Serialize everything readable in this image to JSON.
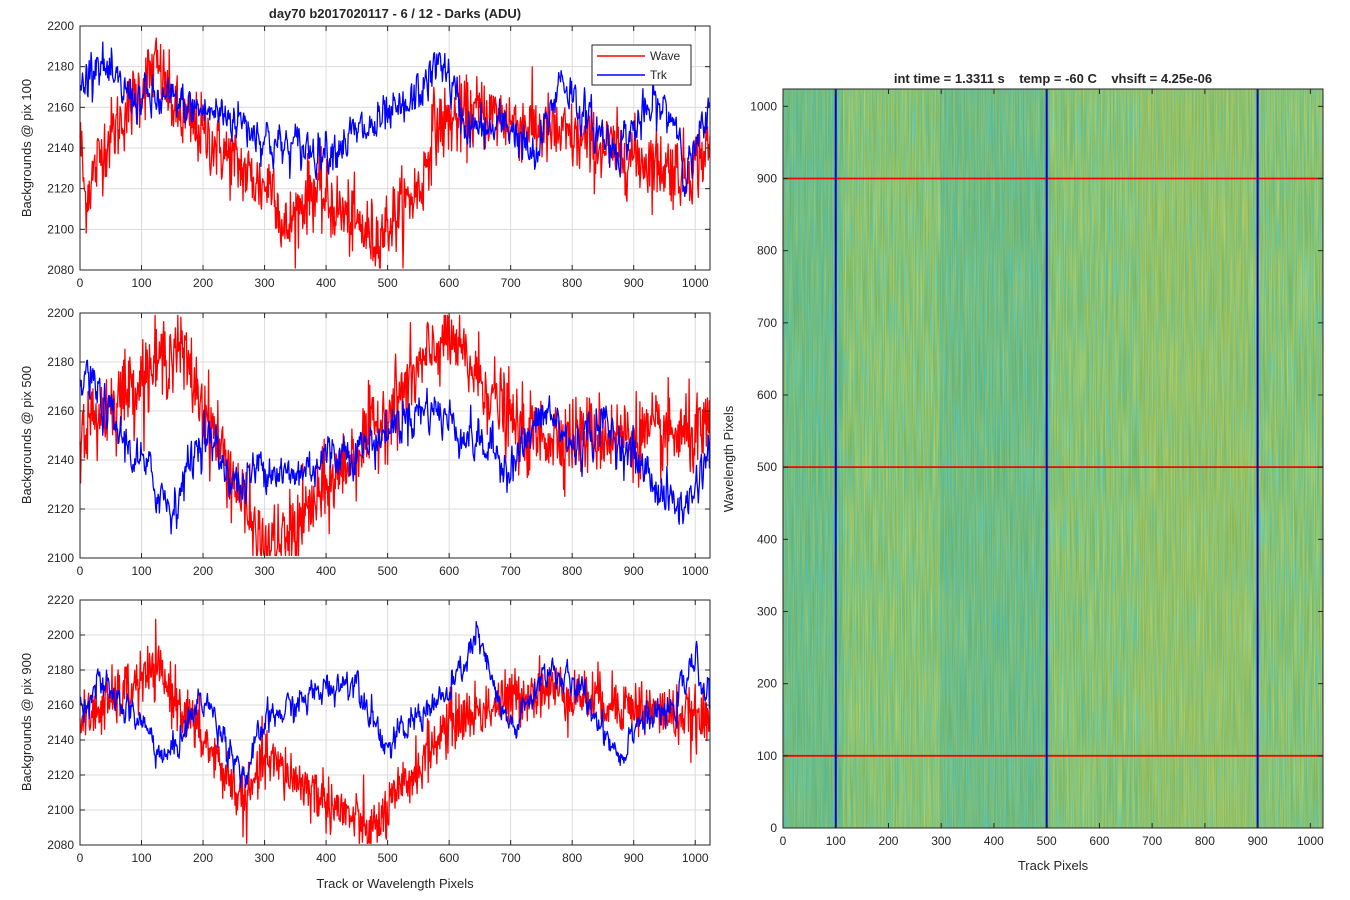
{
  "figure": {
    "suptitle": "day70 b2017020117 - 6 / 12 - Darks (ADU)",
    "image_title": "int time = 1.3311 s    temp = -60 C    vhsift = 4.25e-06"
  },
  "chart_data": [
    {
      "type": "line",
      "xlabel": "",
      "ylabel": "Backgrounds @ pix 100",
      "xlim": [
        0,
        1024
      ],
      "ylim": [
        2080,
        2200
      ],
      "xticks": [
        0,
        100,
        200,
        300,
        400,
        500,
        600,
        700,
        800,
        900,
        1000
      ],
      "yticks": [
        2080,
        2100,
        2120,
        2140,
        2160,
        2180,
        2200
      ],
      "grid": true,
      "legend": "top-right",
      "series": [
        {
          "name": "Wave",
          "color": "#ff0000",
          "mean": 2150,
          "std": 12,
          "x": [
            0,
            8,
            37,
            124,
            160,
            189,
            295,
            316,
            330,
            376,
            480,
            556,
            574,
            650,
            985,
            1024
          ],
          "values": [
            2148,
            2115,
            2140,
            2181,
            2155,
            2150,
            2121,
            2124,
            2097,
            2120,
            2095,
            2122,
            2150,
            2158,
            2128,
            2140
          ]
        },
        {
          "name": "Trk",
          "color": "#0000ff",
          "mean": 2155,
          "std": 6,
          "x": [
            0,
            27,
            55,
            100,
            150,
            200,
            245,
            280,
            325,
            400,
            478,
            530,
            590,
            605,
            630,
            665,
            700,
            740,
            782,
            825,
            870,
            935,
            970,
            985,
            1024
          ],
          "values": [
            2168,
            2186,
            2170,
            2164,
            2162,
            2158,
            2156,
            2150,
            2140,
            2140,
            2150,
            2158,
            2184,
            2168,
            2150,
            2148,
            2152,
            2132,
            2176,
            2153,
            2140,
            2160,
            2154,
            2128,
            2155
          ]
        }
      ]
    },
    {
      "type": "line",
      "xlabel": "",
      "ylabel": "Backgrounds @ pix 500",
      "xlim": [
        0,
        1024
      ],
      "ylim": [
        2100,
        2200
      ],
      "xticks": [
        0,
        100,
        200,
        300,
        400,
        500,
        600,
        700,
        800,
        900,
        1000
      ],
      "yticks": [
        2100,
        2120,
        2140,
        2160,
        2180,
        2200
      ],
      "grid": true,
      "series": [
        {
          "name": "Wave",
          "color": "#ff0000",
          "mean": 2148,
          "std": 11,
          "x": [
            0,
            160,
            295,
            330,
            400,
            500,
            595,
            720,
            1024
          ],
          "values": [
            2152,
            2187,
            2104,
            2106,
            2128,
            2160,
            2191,
            2150,
            2150
          ]
        },
        {
          "name": "Trk",
          "color": "#0000ff",
          "mean": 2145,
          "std": 5,
          "x": [
            0,
            10,
            60,
            150,
            200,
            260,
            300,
            340,
            400,
            470,
            530,
            570,
            620,
            700,
            760,
            800,
            850,
            905,
            955,
            985,
            1024
          ],
          "values": [
            2168,
            2175,
            2152,
            2120,
            2152,
            2128,
            2140,
            2132,
            2142,
            2146,
            2158,
            2162,
            2152,
            2138,
            2160,
            2145,
            2155,
            2140,
            2124,
            2120,
            2145
          ]
        }
      ]
    },
    {
      "type": "line",
      "xlabel": "Track or Wavelength Pixels",
      "ylabel": "Backgrounds @ pix 900",
      "xlim": [
        0,
        1024
      ],
      "ylim": [
        2080,
        2220
      ],
      "xticks": [
        0,
        100,
        200,
        300,
        400,
        500,
        600,
        700,
        800,
        900,
        1000
      ],
      "yticks": [
        2080,
        2100,
        2120,
        2140,
        2160,
        2180,
        2200,
        2220
      ],
      "grid": true,
      "series": [
        {
          "name": "Wave",
          "color": "#ff0000",
          "mean": 2150,
          "std": 11,
          "x": [
            0,
            125,
            270,
            300,
            475,
            600,
            750,
            1024
          ],
          "values": [
            2150,
            2180,
            2103,
            2130,
            2087,
            2150,
            2170,
            2150
          ]
        },
        {
          "name": "Trk",
          "color": "#0000ff",
          "mean": 2155,
          "std": 5,
          "x": [
            0,
            30,
            100,
            140,
            200,
            270,
            300,
            350,
            400,
            450,
            500,
            560,
            600,
            645,
            690,
            710,
            760,
            820,
            880,
            900,
            960,
            1000,
            1024
          ],
          "values": [
            2160,
            2172,
            2150,
            2128,
            2165,
            2118,
            2150,
            2160,
            2170,
            2175,
            2135,
            2158,
            2165,
            2200,
            2150,
            2148,
            2182,
            2165,
            2130,
            2150,
            2155,
            2185,
            2162
          ]
        }
      ]
    },
    {
      "type": "heatmap",
      "xlabel": "Track Pixels",
      "ylabel": "Wavelength Pixels",
      "xlim": [
        0,
        1024
      ],
      "ylim": [
        0,
        1024
      ],
      "xticks": [
        0,
        100,
        200,
        300,
        400,
        500,
        600,
        700,
        800,
        900,
        1000
      ],
      "yticks": [
        0,
        100,
        200,
        300,
        400,
        500,
        600,
        700,
        800,
        900,
        1000
      ],
      "colormap": "parula",
      "marker_lines": {
        "vertical": {
          "x": [
            100,
            500,
            900
          ],
          "color": "#0000cc"
        },
        "horizontal": {
          "y": [
            100,
            500,
            900
          ],
          "color": "#ff0000"
        }
      }
    }
  ]
}
